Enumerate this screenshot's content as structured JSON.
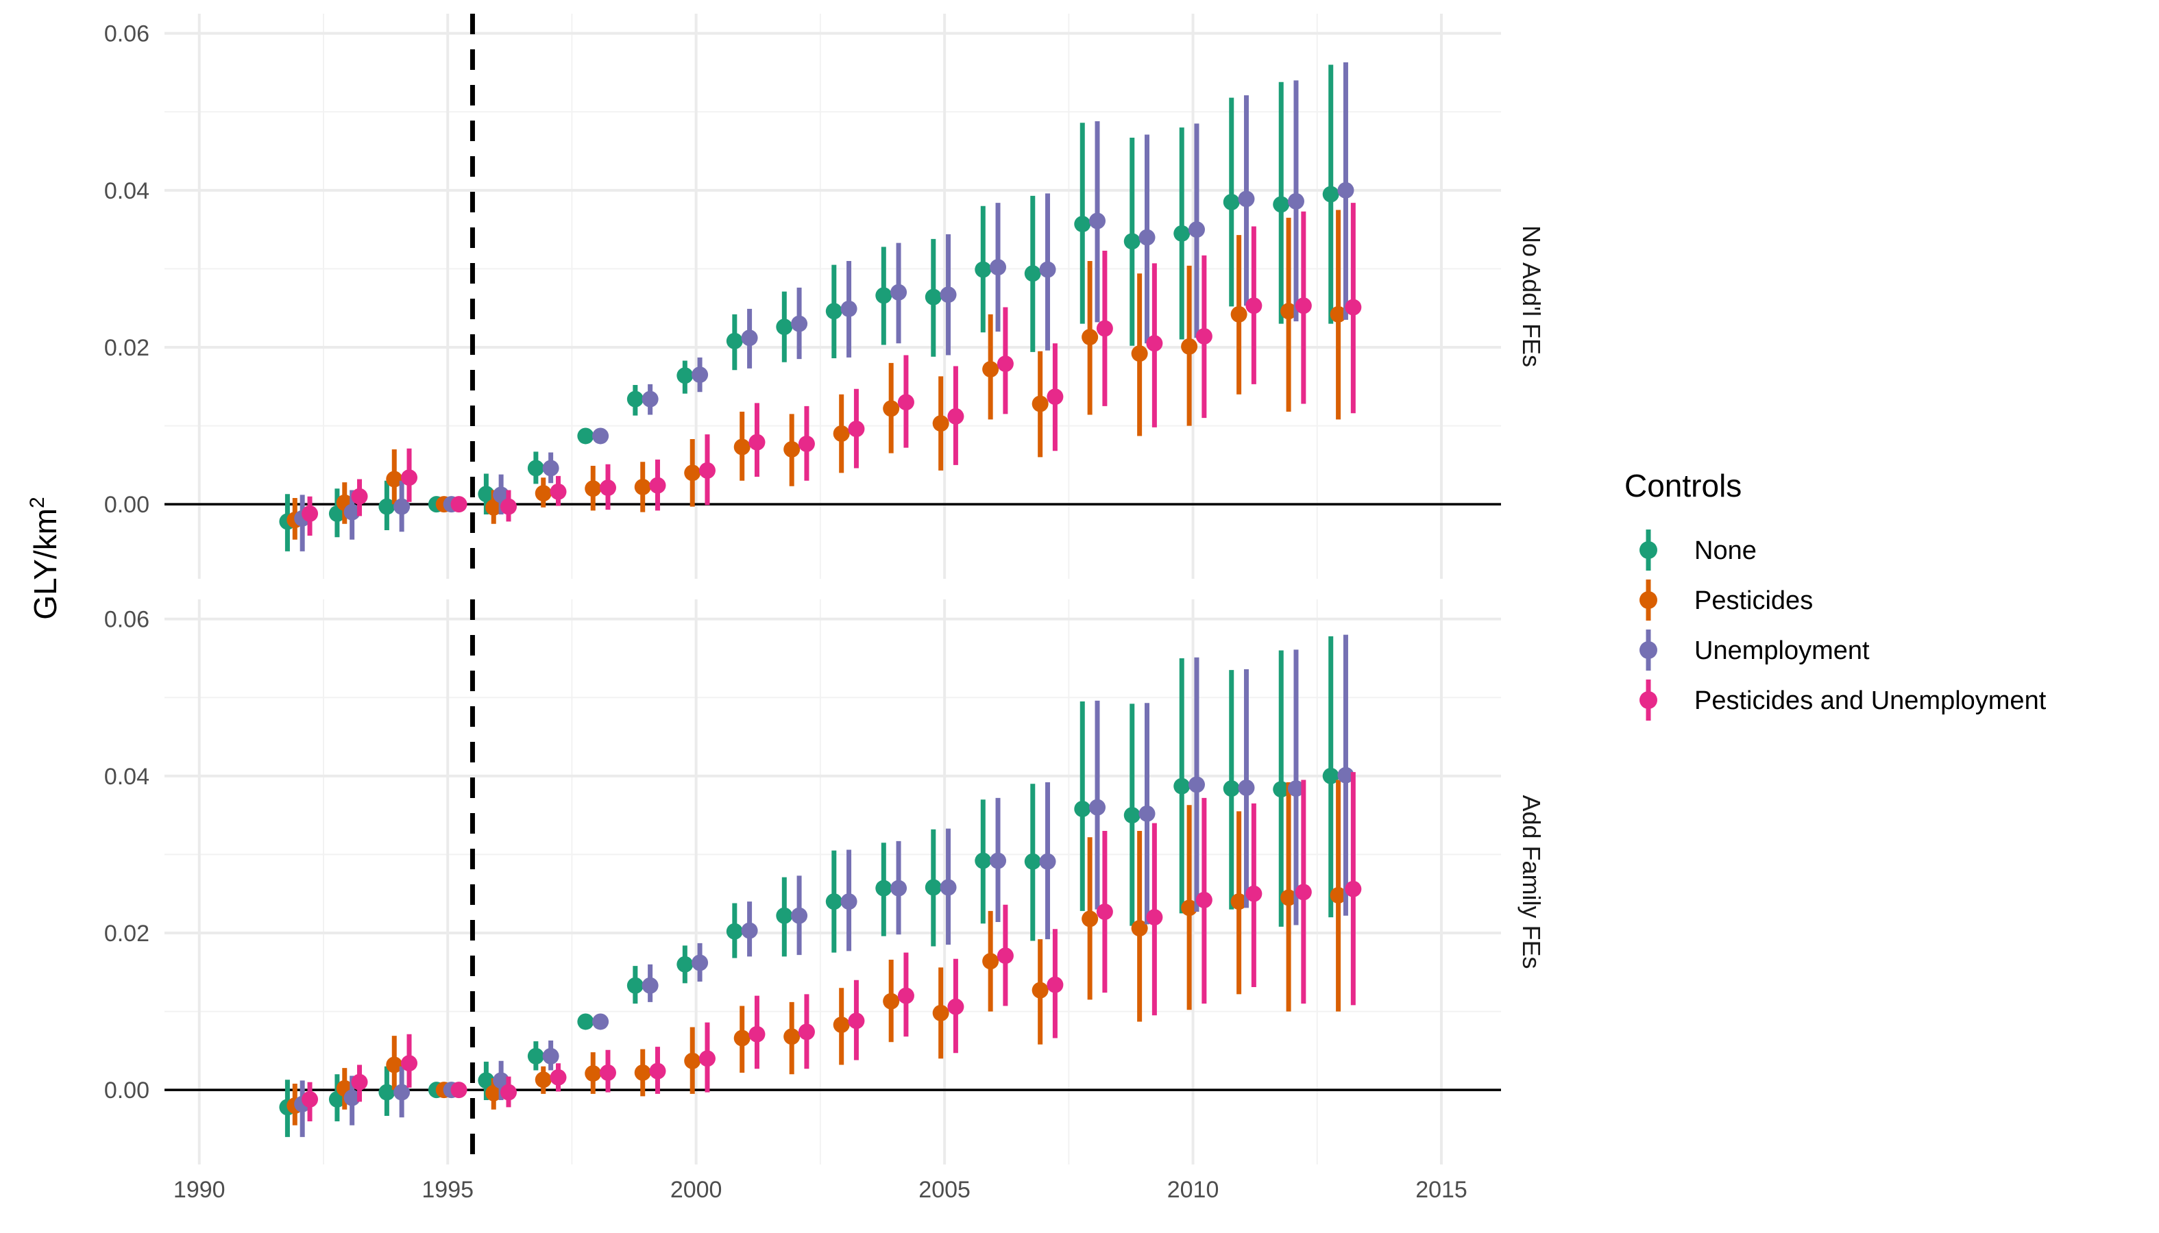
{
  "chart_data": {
    "type": "errorbar",
    "ylabel": "GLY/km",
    "ylabel_superscript": "2",
    "xlim": [
      1989.3,
      2016.2
    ],
    "x_ticks": [
      1990,
      1995,
      2000,
      2005,
      2010,
      2015
    ],
    "ylim": [
      -0.0095,
      0.0625
    ],
    "y_ticks": [
      0,
      0.02,
      0.04,
      0.06
    ],
    "y_tick_labels": [
      "0.00",
      "0.02",
      "0.04",
      "0.06"
    ],
    "reference_vline": 1995.5,
    "reference_hline": 0,
    "grid": true,
    "legend": {
      "title": "Controls",
      "position": "right",
      "entries": [
        "None",
        "Pesticides",
        "Unemployment",
        "Pesticides and Unemployment"
      ]
    },
    "colors": {
      "None": "#1b9e77",
      "Pesticides": "#d95f02",
      "Unemployment": "#7570b3",
      "Pesticides and Unemployment": "#e7298a"
    },
    "dodge_offsets": [
      -0.225,
      -0.075,
      0.075,
      0.225
    ],
    "years": [
      1992,
      1993,
      1994,
      1995,
      1996,
      1997,
      1998,
      1999,
      2000,
      2001,
      2002,
      2003,
      2004,
      2005,
      2006,
      2007,
      2008,
      2009,
      2010,
      2011,
      2012,
      2013
    ],
    "panels": [
      {
        "label": "No Add'l FEs",
        "series": [
          {
            "name": "None",
            "est": [
              -0.0022,
              -0.0012,
              -0.0003,
              0.0,
              0.0013,
              0.0046,
              0.0087,
              0.0134,
              0.0164,
              0.0208,
              0.0226,
              0.0246,
              0.0266,
              0.0264,
              0.0299,
              0.0294,
              0.0357,
              0.0335,
              0.0345,
              0.0385,
              0.0382,
              0.0395
            ],
            "low": [
              -0.006,
              -0.0042,
              -0.0033,
              0.0,
              -0.0013,
              0.0026,
              0.0087,
              0.0113,
              0.0141,
              0.0171,
              0.0181,
              0.0186,
              0.0203,
              0.0188,
              0.0219,
              0.0194,
              0.023,
              0.0202,
              0.021,
              0.0252,
              0.023,
              0.023
            ],
            "high": [
              0.0013,
              0.002,
              0.003,
              0.0,
              0.0039,
              0.0067,
              0.0087,
              0.0152,
              0.0183,
              0.0242,
              0.0271,
              0.0305,
              0.0328,
              0.0338,
              0.038,
              0.0393,
              0.0486,
              0.0467,
              0.048,
              0.0518,
              0.0538,
              0.056
            ]
          },
          {
            "name": "Pesticides",
            "est": [
              -0.002,
              0.0002,
              0.0032,
              0.0,
              -0.0004,
              0.0014,
              0.002,
              0.0022,
              0.004,
              0.0073,
              0.007,
              0.009,
              0.0122,
              0.0103,
              0.0172,
              0.0128,
              0.0213,
              0.0192,
              0.0201,
              0.0242,
              0.0246,
              0.0242
            ],
            "low": [
              -0.0045,
              -0.0025,
              0.0,
              0.0,
              -0.0025,
              -0.0004,
              -0.0008,
              -0.001,
              -0.0003,
              0.003,
              0.0023,
              0.004,
              0.0065,
              0.0043,
              0.0108,
              0.006,
              0.0114,
              0.0087,
              0.01,
              0.014,
              0.0118,
              0.0108
            ],
            "high": [
              0.0008,
              0.0028,
              0.007,
              0.0,
              0.0018,
              0.0034,
              0.0049,
              0.0054,
              0.0083,
              0.0118,
              0.0115,
              0.014,
              0.018,
              0.0163,
              0.0242,
              0.0195,
              0.031,
              0.0294,
              0.0304,
              0.0343,
              0.0365,
              0.0375
            ]
          },
          {
            "name": "Unemployment",
            "est": [
              -0.0018,
              -0.001,
              -0.0003,
              0.0,
              0.0012,
              0.0046,
              0.0087,
              0.0134,
              0.0165,
              0.0212,
              0.023,
              0.0249,
              0.027,
              0.0267,
              0.0302,
              0.0299,
              0.0361,
              0.034,
              0.035,
              0.0389,
              0.0386,
              0.04
            ],
            "low": [
              -0.006,
              -0.0045,
              -0.0035,
              0.0,
              -0.0013,
              0.0027,
              0.0087,
              0.0114,
              0.0143,
              0.0173,
              0.0185,
              0.0187,
              0.0205,
              0.019,
              0.022,
              0.0196,
              0.0232,
              0.0205,
              0.0212,
              0.0253,
              0.0233,
              0.0235
            ],
            "high": [
              0.0012,
              0.0018,
              0.003,
              0.0,
              0.0038,
              0.0066,
              0.0087,
              0.0153,
              0.0187,
              0.0249,
              0.0276,
              0.031,
              0.0333,
              0.0344,
              0.0384,
              0.0396,
              0.0488,
              0.0471,
              0.0485,
              0.0521,
              0.054,
              0.0563
            ]
          },
          {
            "name": "Pesticides and Unemployment",
            "est": [
              -0.0012,
              0.001,
              0.0034,
              0.0,
              -0.0003,
              0.0016,
              0.0021,
              0.0024,
              0.0043,
              0.0079,
              0.0077,
              0.0096,
              0.013,
              0.0112,
              0.0179,
              0.0137,
              0.0224,
              0.0205,
              0.0214,
              0.0253,
              0.0253,
              0.0251
            ],
            "low": [
              -0.004,
              -0.0015,
              0.0003,
              0.0,
              -0.0022,
              -0.0002,
              -0.0007,
              -0.0008,
              -0.0001,
              0.0035,
              0.003,
              0.0046,
              0.0072,
              0.005,
              0.0115,
              0.0068,
              0.0125,
              0.0098,
              0.011,
              0.0153,
              0.0128,
              0.0116
            ],
            "high": [
              0.001,
              0.0032,
              0.0071,
              0.0,
              0.0018,
              0.0036,
              0.0051,
              0.0057,
              0.0089,
              0.0129,
              0.0125,
              0.0147,
              0.019,
              0.0176,
              0.0251,
              0.0205,
              0.0323,
              0.0307,
              0.0317,
              0.0354,
              0.0373,
              0.0384
            ]
          }
        ]
      },
      {
        "label": "Add Family FEs",
        "series": [
          {
            "name": "None",
            "est": [
              -0.0022,
              -0.0012,
              -0.0003,
              0.0,
              0.0012,
              0.0043,
              0.0087,
              0.0133,
              0.016,
              0.0202,
              0.0222,
              0.024,
              0.0257,
              0.0258,
              0.0292,
              0.0291,
              0.0358,
              0.035,
              0.0387,
              0.0384,
              0.0383,
              0.04
            ],
            "low": [
              -0.006,
              -0.004,
              -0.0033,
              0.0,
              -0.0013,
              0.0025,
              0.0087,
              0.011,
              0.0136,
              0.0168,
              0.017,
              0.0175,
              0.0196,
              0.0183,
              0.0212,
              0.019,
              0.0228,
              0.0209,
              0.0225,
              0.023,
              0.0208,
              0.022
            ],
            "high": [
              0.0013,
              0.002,
              0.003,
              0.0,
              0.0036,
              0.0062,
              0.0087,
              0.0158,
              0.0184,
              0.0238,
              0.0271,
              0.0305,
              0.0315,
              0.0332,
              0.037,
              0.039,
              0.0495,
              0.0492,
              0.055,
              0.0535,
              0.056,
              0.0578
            ]
          },
          {
            "name": "Pesticides",
            "est": [
              -0.002,
              0.0002,
              0.0032,
              0.0,
              -0.0004,
              0.0013,
              0.0021,
              0.0022,
              0.0037,
              0.0066,
              0.0068,
              0.0083,
              0.0113,
              0.0098,
              0.0164,
              0.0127,
              0.0218,
              0.0206,
              0.0232,
              0.024,
              0.0245,
              0.0248
            ],
            "low": [
              -0.0045,
              -0.0025,
              0.0,
              0.0,
              -0.0025,
              -0.0005,
              -0.0005,
              -0.0008,
              -0.0005,
              0.0022,
              0.002,
              0.0032,
              0.0061,
              0.004,
              0.01,
              0.0058,
              0.0115,
              0.0087,
              0.0102,
              0.0122,
              0.01,
              0.01
            ],
            "high": [
              0.0008,
              0.0028,
              0.0069,
              0.0,
              0.0015,
              0.003,
              0.0048,
              0.0052,
              0.008,
              0.0107,
              0.0112,
              0.013,
              0.0166,
              0.0156,
              0.0228,
              0.0192,
              0.0322,
              0.033,
              0.0363,
              0.0355,
              0.0392,
              0.0395
            ]
          },
          {
            "name": "Unemployment",
            "est": [
              -0.0018,
              -0.001,
              -0.0003,
              0.0,
              0.0012,
              0.0043,
              0.0087,
              0.0133,
              0.0162,
              0.0203,
              0.0222,
              0.024,
              0.0257,
              0.0258,
              0.0292,
              0.0291,
              0.036,
              0.0352,
              0.0389,
              0.0385,
              0.0384,
              0.0401
            ],
            "low": [
              -0.006,
              -0.0045,
              -0.0035,
              0.0,
              -0.0013,
              0.0025,
              0.0087,
              0.0112,
              0.0138,
              0.017,
              0.0172,
              0.0177,
              0.0198,
              0.0185,
              0.0214,
              0.0192,
              0.023,
              0.0211,
              0.0227,
              0.0232,
              0.021,
              0.0222
            ],
            "high": [
              0.0012,
              0.0018,
              0.003,
              0.0,
              0.0037,
              0.0063,
              0.0087,
              0.016,
              0.0187,
              0.024,
              0.0273,
              0.0306,
              0.0317,
              0.0333,
              0.0372,
              0.0392,
              0.0496,
              0.0493,
              0.0551,
              0.0536,
              0.0561,
              0.058
            ]
          },
          {
            "name": "Pesticides and Unemployment",
            "est": [
              -0.0012,
              0.001,
              0.0034,
              0.0,
              -0.0003,
              0.0016,
              0.0022,
              0.0024,
              0.004,
              0.0071,
              0.0074,
              0.0088,
              0.012,
              0.0106,
              0.0171,
              0.0134,
              0.0227,
              0.022,
              0.0242,
              0.025,
              0.0252,
              0.0256
            ],
            "low": [
              -0.004,
              -0.0015,
              0.0003,
              0.0,
              -0.0022,
              -0.0002,
              -0.0003,
              -0.0005,
              -0.0003,
              0.0027,
              0.0027,
              0.0038,
              0.0068,
              0.0047,
              0.0107,
              0.0066,
              0.0124,
              0.0095,
              0.011,
              0.0131,
              0.011,
              0.0108
            ],
            "high": [
              0.001,
              0.0032,
              0.0071,
              0.0,
              0.0017,
              0.0034,
              0.0051,
              0.0055,
              0.0086,
              0.012,
              0.0122,
              0.014,
              0.0175,
              0.0167,
              0.0236,
              0.0205,
              0.033,
              0.034,
              0.0372,
              0.0365,
              0.0395,
              0.0405
            ]
          }
        ]
      }
    ]
  }
}
